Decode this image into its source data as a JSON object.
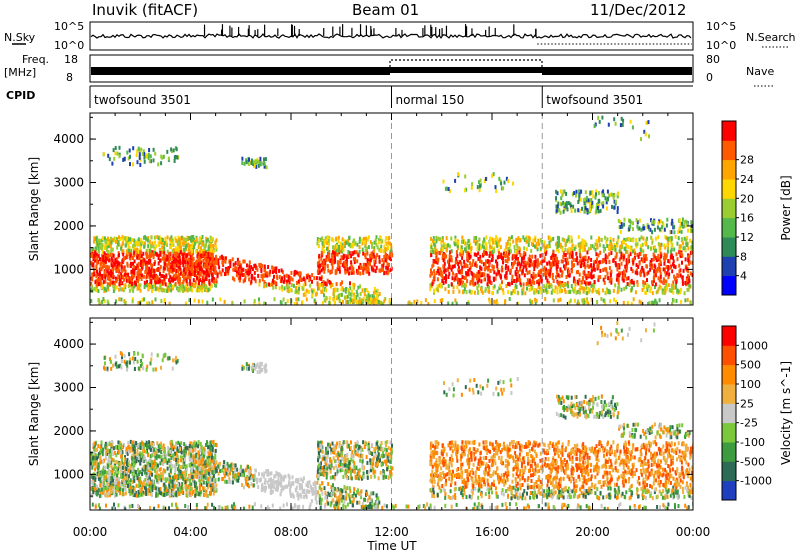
{
  "header": {
    "station": "Inuvik (fitACF)",
    "beam": "Beam 01",
    "date": "11/Dec/2012"
  },
  "left_labels": {
    "nsky": "N.Sky",
    "freq": "Freq.",
    "freq_unit": "[MHz]",
    "cpid": "CPID"
  },
  "right_labels": {
    "nsearch": "N.Search",
    "nave": "Nave"
  },
  "strip_ticks": {
    "noise_left": [
      "10^5",
      "10^0"
    ],
    "noise_right": [
      "10^5",
      "10^0"
    ],
    "freq_left": [
      "18",
      "8"
    ],
    "nave_right": [
      "80",
      "0"
    ]
  },
  "cpid_segments": [
    {
      "label": "twofsound 3501",
      "start_hour": 0
    },
    {
      "label": "normal 150",
      "start_hour": 12
    },
    {
      "label": "twofsound 3501",
      "start_hour": 18
    }
  ],
  "chart_data": [
    {
      "type": "heatmap",
      "ylabel": "Slant Range [km]",
      "xlabel": "Time UT",
      "xlim": [
        0,
        24
      ],
      "ylim": [
        180,
        4600
      ],
      "y_ticks": [
        "1000",
        "2000",
        "3000",
        "4000"
      ],
      "x_ticks": [
        "00:00",
        "04:00",
        "08:00",
        "12:00",
        "16:00",
        "20:00",
        "00:00"
      ],
      "colorbar": {
        "label": "Power [dB]",
        "ticks": [
          "4",
          "8",
          "12",
          "16",
          "20",
          "24",
          "28"
        ],
        "colors": [
          "#0000ff",
          "#1e40b0",
          "#2e8b57",
          "#55b84a",
          "#9acd32",
          "#ffd700",
          "#ffa500",
          "#ff5a00",
          "#ff0000"
        ]
      }
    },
    {
      "type": "heatmap",
      "ylabel": "Slant Range [km]",
      "xlabel": "Time UT",
      "xlim": [
        0,
        24
      ],
      "ylim": [
        180,
        4600
      ],
      "y_ticks": [
        "1000",
        "2000",
        "3000",
        "4000"
      ],
      "x_ticks": [
        "00:00",
        "04:00",
        "08:00",
        "12:00",
        "16:00",
        "20:00",
        "00:00"
      ],
      "colorbar": {
        "label": "Velocity [m s^-1]",
        "ticks": [
          "1000",
          "500",
          "100",
          "25",
          "-25",
          "-100",
          "-500",
          "-1000"
        ],
        "colors": [
          "#1f3fbf",
          "#2e6b57",
          "#3d9b40",
          "#7cc83c",
          "#c8c8c8",
          "#f0b040",
          "#ff8c00",
          "#ff5000",
          "#ff0000"
        ]
      }
    }
  ]
}
